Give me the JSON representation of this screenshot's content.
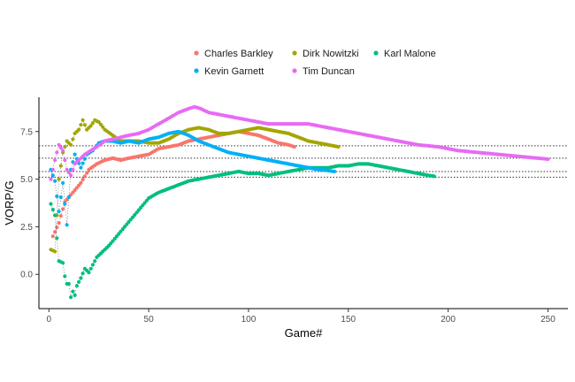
{
  "chart_data": {
    "type": "scatter",
    "title": "",
    "xlabel": "Game#",
    "ylabel": "VORP/G",
    "xlim": [
      -5,
      260
    ],
    "ylim": [
      -1.8,
      9.3
    ],
    "x_ticks": [
      0,
      50,
      100,
      150,
      200,
      250
    ],
    "y_ticks": [
      0.0,
      2.5,
      5.0,
      7.5
    ],
    "y_tick_labels": [
      "0.0",
      "2.5",
      "5.0",
      "7.5"
    ],
    "grid": false,
    "legend_position": "top",
    "reference_lines_y": [
      6.75,
      6.1,
      5.4,
      5.1
    ],
    "reference_line_style": "dotted",
    "series": [
      {
        "name": "Charles Barkley",
        "color": "#F8766D",
        "points": [
          [
            2,
            2.0
          ],
          [
            5,
            2.7
          ],
          [
            8,
            3.8
          ],
          [
            12,
            4.3
          ],
          [
            16,
            4.8
          ],
          [
            20,
            5.5
          ],
          [
            24,
            5.8
          ],
          [
            28,
            6.0
          ],
          [
            32,
            6.1
          ],
          [
            36,
            6.0
          ],
          [
            40,
            6.1
          ],
          [
            45,
            6.2
          ],
          [
            50,
            6.3
          ],
          [
            55,
            6.6
          ],
          [
            60,
            6.7
          ],
          [
            65,
            6.8
          ],
          [
            70,
            7.0
          ],
          [
            75,
            7.1
          ],
          [
            80,
            7.2
          ],
          [
            85,
            7.3
          ],
          [
            90,
            7.4
          ],
          [
            95,
            7.5
          ],
          [
            100,
            7.4
          ],
          [
            105,
            7.3
          ],
          [
            110,
            7.1
          ],
          [
            115,
            6.9
          ],
          [
            120,
            6.8
          ],
          [
            123,
            6.7
          ]
        ]
      },
      {
        "name": "Dirk Nowitzki",
        "color": "#A3A500",
        "points": [
          [
            1,
            1.3
          ],
          [
            3,
            1.2
          ],
          [
            5,
            5.0
          ],
          [
            7,
            6.4
          ],
          [
            9,
            7.0
          ],
          [
            11,
            6.8
          ],
          [
            13,
            7.4
          ],
          [
            15,
            7.6
          ],
          [
            17,
            8.1
          ],
          [
            19,
            7.6
          ],
          [
            21,
            7.8
          ],
          [
            23,
            8.1
          ],
          [
            25,
            8.0
          ],
          [
            28,
            7.6
          ],
          [
            32,
            7.3
          ],
          [
            36,
            7.0
          ],
          [
            40,
            7.0
          ],
          [
            45,
            7.0
          ],
          [
            50,
            6.9
          ],
          [
            55,
            6.9
          ],
          [
            60,
            7.1
          ],
          [
            65,
            7.4
          ],
          [
            70,
            7.6
          ],
          [
            75,
            7.7
          ],
          [
            80,
            7.6
          ],
          [
            85,
            7.4
          ],
          [
            90,
            7.4
          ],
          [
            95,
            7.5
          ],
          [
            100,
            7.6
          ],
          [
            105,
            7.7
          ],
          [
            110,
            7.6
          ],
          [
            115,
            7.5
          ],
          [
            120,
            7.4
          ],
          [
            125,
            7.2
          ],
          [
            130,
            7.0
          ],
          [
            135,
            6.9
          ],
          [
            140,
            6.8
          ],
          [
            145,
            6.7
          ]
        ]
      },
      {
        "name": "Karl Malone",
        "color": "#00BF7D",
        "points": [
          [
            1,
            3.7
          ],
          [
            3,
            3.1
          ],
          [
            5,
            0.7
          ],
          [
            7,
            0.6
          ],
          [
            8,
            -0.1
          ],
          [
            9,
            -0.5
          ],
          [
            10,
            -0.5
          ],
          [
            11,
            -1.2
          ],
          [
            12,
            -0.9
          ],
          [
            13,
            -1.1
          ],
          [
            14,
            -0.6
          ],
          [
            16,
            -0.2
          ],
          [
            18,
            0.3
          ],
          [
            20,
            0.1
          ],
          [
            22,
            0.5
          ],
          [
            24,
            0.9
          ],
          [
            27,
            1.2
          ],
          [
            30,
            1.5
          ],
          [
            34,
            2.0
          ],
          [
            38,
            2.5
          ],
          [
            42,
            3.0
          ],
          [
            46,
            3.5
          ],
          [
            50,
            4.0
          ],
          [
            55,
            4.3
          ],
          [
            60,
            4.5
          ],
          [
            65,
            4.7
          ],
          [
            70,
            4.9
          ],
          [
            75,
            5.0
          ],
          [
            80,
            5.1
          ],
          [
            85,
            5.2
          ],
          [
            90,
            5.3
          ],
          [
            95,
            5.4
          ],
          [
            100,
            5.3
          ],
          [
            105,
            5.3
          ],
          [
            110,
            5.2
          ],
          [
            115,
            5.3
          ],
          [
            120,
            5.4
          ],
          [
            125,
            5.5
          ],
          [
            130,
            5.6
          ],
          [
            135,
            5.6
          ],
          [
            140,
            5.6
          ],
          [
            145,
            5.7
          ],
          [
            150,
            5.7
          ],
          [
            155,
            5.8
          ],
          [
            160,
            5.8
          ],
          [
            165,
            5.7
          ],
          [
            170,
            5.6
          ],
          [
            175,
            5.5
          ],
          [
            180,
            5.4
          ],
          [
            185,
            5.3
          ],
          [
            190,
            5.2
          ],
          [
            193,
            5.15
          ]
        ]
      },
      {
        "name": "Kevin Garnett",
        "color": "#00B0F6",
        "points": [
          [
            1,
            5.5
          ],
          [
            3,
            4.9
          ],
          [
            5,
            3.3
          ],
          [
            7,
            4.8
          ],
          [
            9,
            2.6
          ],
          [
            11,
            5.5
          ],
          [
            13,
            6.3
          ],
          [
            16,
            5.6
          ],
          [
            19,
            6.3
          ],
          [
            22,
            6.5
          ],
          [
            25,
            6.9
          ],
          [
            28,
            7.0
          ],
          [
            32,
            7.0
          ],
          [
            36,
            6.9
          ],
          [
            40,
            7.0
          ],
          [
            45,
            6.9
          ],
          [
            50,
            7.1
          ],
          [
            55,
            7.2
          ],
          [
            60,
            7.4
          ],
          [
            65,
            7.5
          ],
          [
            70,
            7.3
          ],
          [
            75,
            7.0
          ],
          [
            80,
            6.8
          ],
          [
            85,
            6.6
          ],
          [
            90,
            6.4
          ],
          [
            95,
            6.3
          ],
          [
            100,
            6.2
          ],
          [
            105,
            6.1
          ],
          [
            110,
            6.0
          ],
          [
            115,
            5.9
          ],
          [
            120,
            5.8
          ],
          [
            125,
            5.7
          ],
          [
            130,
            5.6
          ],
          [
            135,
            5.5
          ],
          [
            140,
            5.45
          ],
          [
            143,
            5.4
          ]
        ]
      },
      {
        "name": "Tim Duncan",
        "color": "#E76BF3",
        "points": [
          [
            1,
            5.0
          ],
          [
            3,
            6.0
          ],
          [
            5,
            6.8
          ],
          [
            7,
            6.5
          ],
          [
            9,
            5.5
          ],
          [
            11,
            5.2
          ],
          [
            13,
            5.8
          ],
          [
            15,
            6.0
          ],
          [
            18,
            6.3
          ],
          [
            21,
            6.5
          ],
          [
            24,
            6.7
          ],
          [
            28,
            7.0
          ],
          [
            32,
            7.1
          ],
          [
            36,
            7.2
          ],
          [
            40,
            7.3
          ],
          [
            45,
            7.4
          ],
          [
            50,
            7.6
          ],
          [
            55,
            7.9
          ],
          [
            60,
            8.2
          ],
          [
            65,
            8.5
          ],
          [
            70,
            8.7
          ],
          [
            73,
            8.8
          ],
          [
            76,
            8.7
          ],
          [
            80,
            8.5
          ],
          [
            85,
            8.4
          ],
          [
            90,
            8.3
          ],
          [
            95,
            8.2
          ],
          [
            100,
            8.1
          ],
          [
            105,
            8.0
          ],
          [
            110,
            7.9
          ],
          [
            115,
            7.9
          ],
          [
            120,
            7.9
          ],
          [
            125,
            7.9
          ],
          [
            130,
            7.9
          ],
          [
            135,
            7.8
          ],
          [
            140,
            7.7
          ],
          [
            145,
            7.6
          ],
          [
            150,
            7.5
          ],
          [
            155,
            7.4
          ],
          [
            160,
            7.3
          ],
          [
            165,
            7.2
          ],
          [
            170,
            7.1
          ],
          [
            175,
            7.0
          ],
          [
            180,
            6.9
          ],
          [
            185,
            6.8
          ],
          [
            190,
            6.75
          ],
          [
            195,
            6.7
          ],
          [
            200,
            6.6
          ],
          [
            205,
            6.5
          ],
          [
            210,
            6.45
          ],
          [
            215,
            6.4
          ],
          [
            220,
            6.35
          ],
          [
            225,
            6.3
          ],
          [
            230,
            6.25
          ],
          [
            235,
            6.2
          ],
          [
            240,
            6.15
          ],
          [
            245,
            6.1
          ],
          [
            250,
            6.05
          ]
        ]
      }
    ]
  }
}
